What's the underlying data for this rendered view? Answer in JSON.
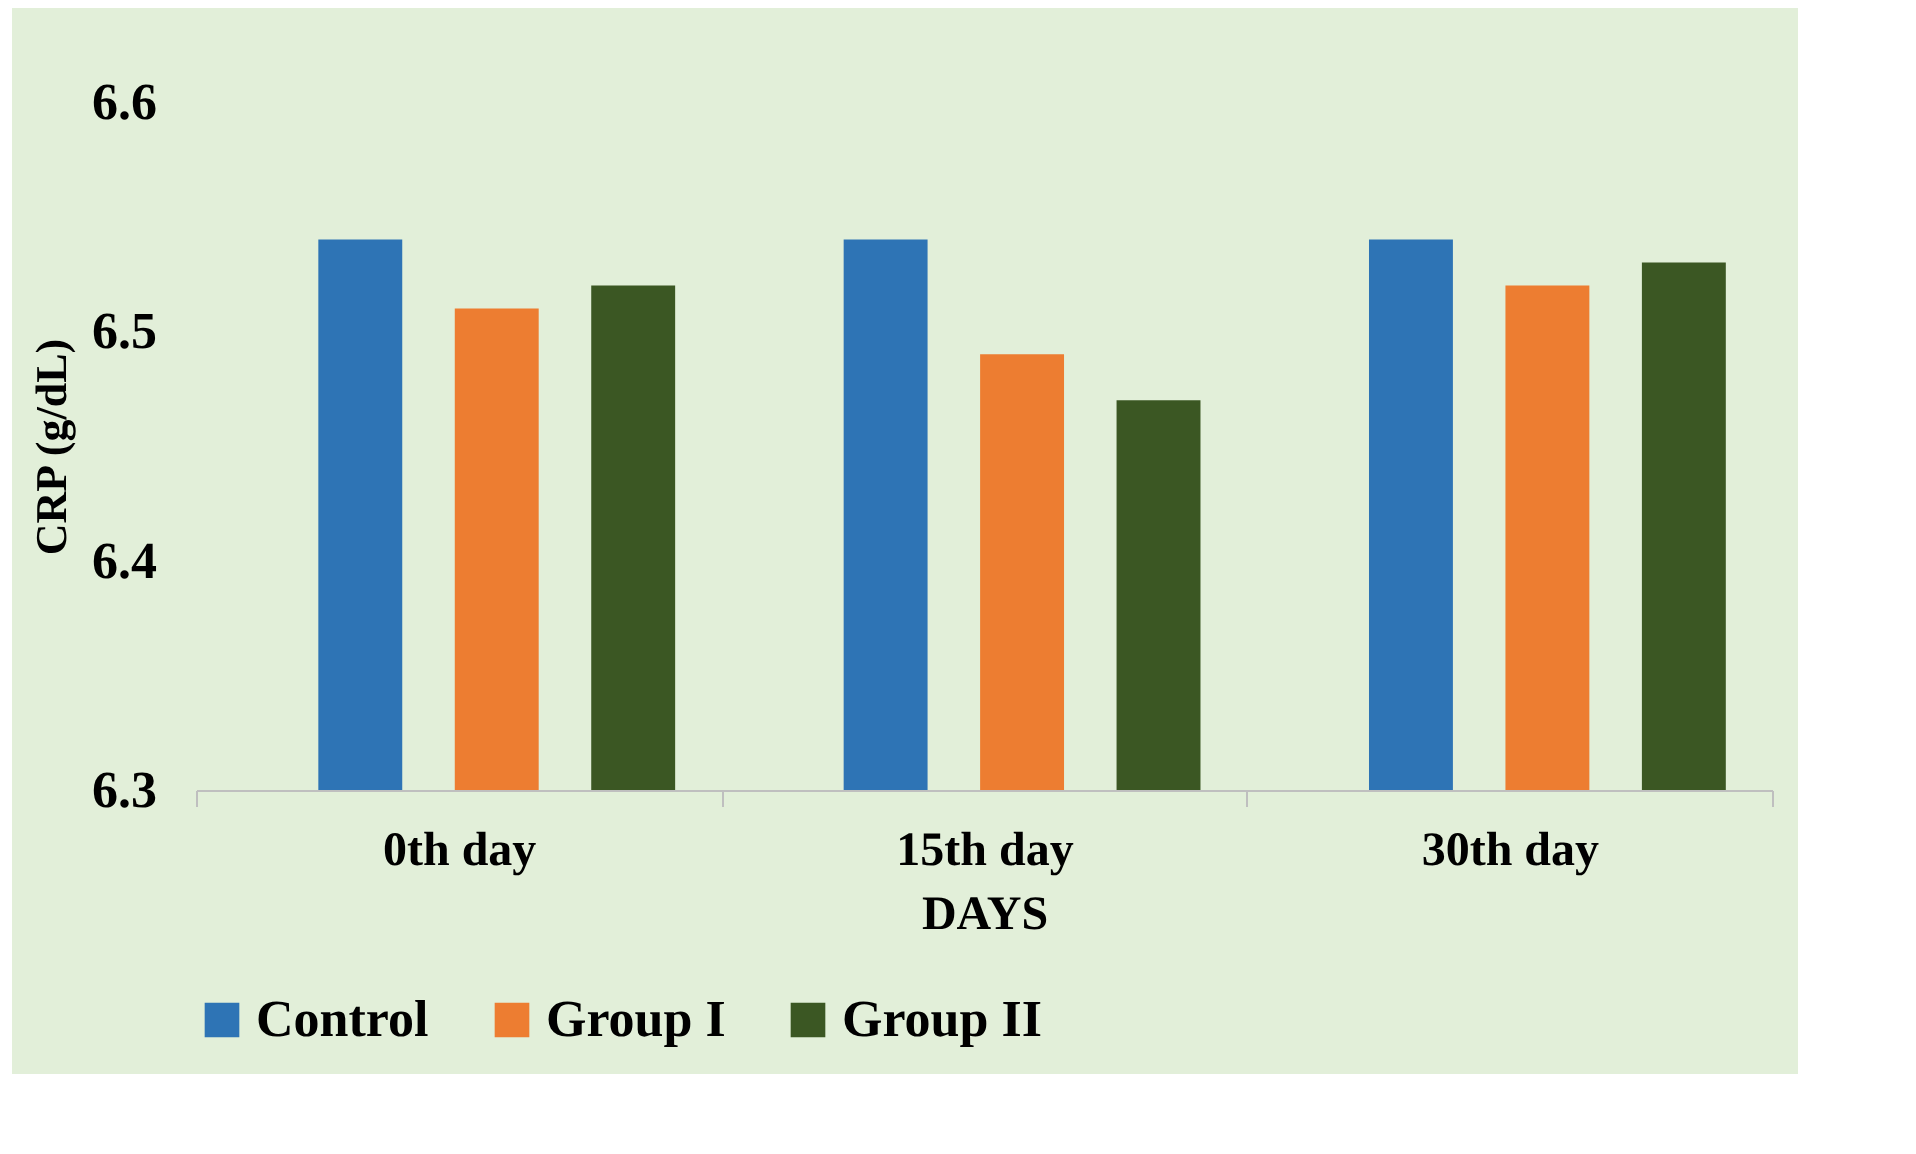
{
  "chart_data": {
    "type": "bar",
    "xlabel": "DAYS",
    "ylabel": "CRP (g/dL)",
    "categories": [
      "0th day",
      "15th day",
      "30th day"
    ],
    "series": [
      {
        "name": "Control",
        "color": "#2e74b5",
        "values": [
          6.54,
          6.54,
          6.54
        ]
      },
      {
        "name": "Group I",
        "color": "#ed7d31",
        "values": [
          6.51,
          6.49,
          6.52
        ]
      },
      {
        "name": "Group II",
        "color": "#3b5723",
        "values": [
          6.52,
          6.47,
          6.53
        ]
      }
    ],
    "ylim": [
      6.3,
      6.6
    ],
    "yticks": [
      6.3,
      6.4,
      6.5,
      6.6
    ],
    "grid": false,
    "legend": "bottom"
  }
}
